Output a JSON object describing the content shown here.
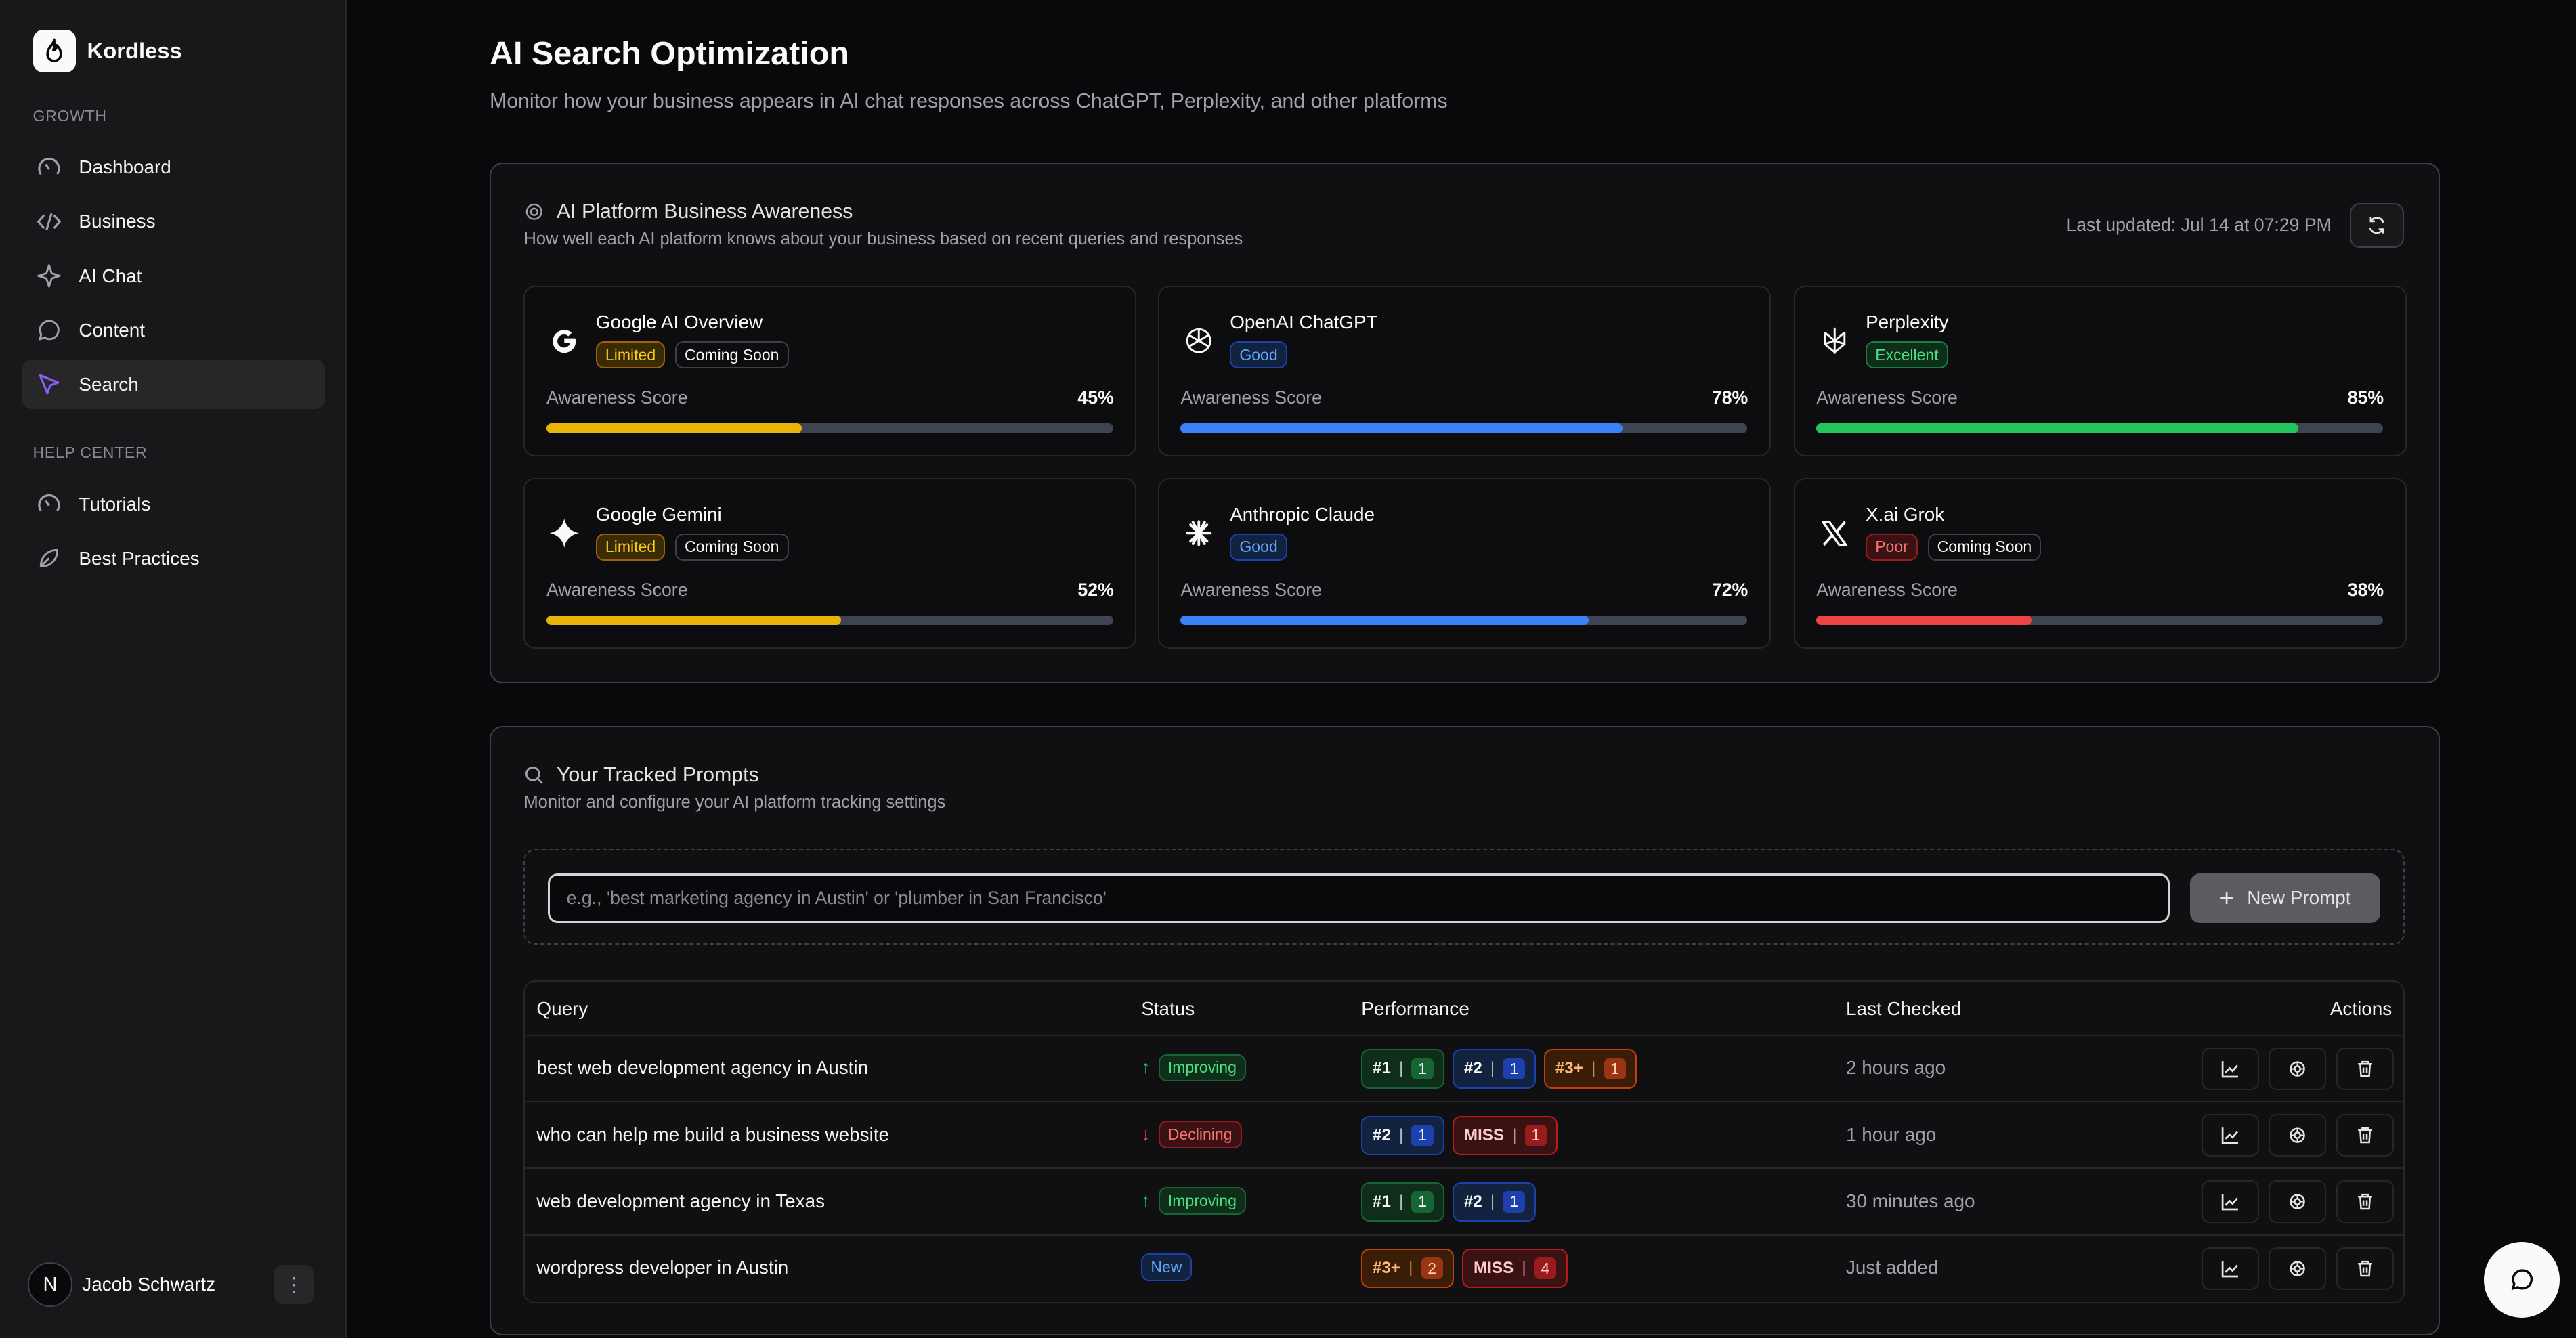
{
  "brand": {
    "name": "Kordless"
  },
  "sidebar": {
    "groups": [
      {
        "label": "GROWTH",
        "items": [
          {
            "label": "Dashboard",
            "icon": "gauge-icon"
          },
          {
            "label": "Business",
            "icon": "code-icon"
          },
          {
            "label": "AI Chat",
            "icon": "sparkle-icon"
          },
          {
            "label": "Content",
            "icon": "chat-bubble-icon"
          },
          {
            "label": "Search",
            "icon": "cursor-arrow-icon",
            "active": true
          }
        ]
      },
      {
        "label": "HELP CENTER",
        "items": [
          {
            "label": "Tutorials",
            "icon": "gauge-icon"
          },
          {
            "label": "Best Practices",
            "icon": "leaf-icon"
          }
        ]
      }
    ]
  },
  "user": {
    "initial": "N",
    "name": "Jacob Schwartz"
  },
  "page": {
    "title": "AI Search Optimization",
    "subtitle": "Monitor how your business appears in AI chat responses across ChatGPT, Perplexity, and other platforms"
  },
  "awareness": {
    "title": "AI Platform Business Awareness",
    "subtitle": "How well each AI platform knows about your business based on recent queries and responses",
    "last_updated": "Last updated: Jul 14 at 07:29 PM",
    "score_label": "Awareness Score",
    "platforms": [
      {
        "name": "Google AI Overview",
        "icon": "google-g-icon",
        "rating": "Limited",
        "soon": "Coming Soon",
        "score": "45%",
        "fill": 0.45,
        "color": "#eab308"
      },
      {
        "name": "OpenAI ChatGPT",
        "icon": "openai-icon",
        "rating": "Good",
        "soon": "",
        "score": "78%",
        "fill": 0.78,
        "color": "#3b82f6"
      },
      {
        "name": "Perplexity",
        "icon": "perplexity-icon",
        "rating": "Excellent",
        "soon": "",
        "score": "85%",
        "fill": 0.85,
        "color": "#22c55e"
      },
      {
        "name": "Google Gemini",
        "icon": "gemini-sparkle-icon",
        "rating": "Limited",
        "soon": "Coming Soon",
        "score": "52%",
        "fill": 0.52,
        "color": "#eab308"
      },
      {
        "name": "Anthropic Claude",
        "icon": "claude-asterisk-icon",
        "rating": "Good",
        "soon": "",
        "score": "72%",
        "fill": 0.72,
        "color": "#3b82f6"
      },
      {
        "name": "X.ai Grok",
        "icon": "x-logo-icon",
        "rating": "Poor",
        "soon": "Coming Soon",
        "score": "38%",
        "fill": 0.38,
        "color": "#ef4444"
      }
    ]
  },
  "prompts": {
    "title": "Your Tracked Prompts",
    "subtitle": "Monitor and configure your AI platform tracking settings",
    "input_placeholder": "e.g., 'best marketing agency in Austin' or 'plumber in San Francisco'",
    "new_button": "New Prompt",
    "columns": [
      "Query",
      "Status",
      "Performance",
      "Last Checked",
      "Actions"
    ],
    "rows": [
      {
        "query": "best web development agency in Austin",
        "status": "Improving",
        "trend": "up",
        "perf": [
          {
            "rank": "#1",
            "count": "1",
            "kind": "1"
          },
          {
            "rank": "#2",
            "count": "1",
            "kind": "2"
          },
          {
            "rank": "#3+",
            "count": "1",
            "kind": "3"
          }
        ],
        "last": "2 hours ago"
      },
      {
        "query": "who can help me build a business website",
        "status": "Declining",
        "trend": "down",
        "perf": [
          {
            "rank": "#2",
            "count": "1",
            "kind": "2"
          },
          {
            "rank": "MISS",
            "count": "1",
            "kind": "miss"
          }
        ],
        "last": "1 hour ago"
      },
      {
        "query": "web development agency in Texas",
        "status": "Improving",
        "trend": "up",
        "perf": [
          {
            "rank": "#1",
            "count": "1",
            "kind": "1"
          },
          {
            "rank": "#2",
            "count": "1",
            "kind": "2"
          }
        ],
        "last": "30 minutes ago"
      },
      {
        "query": "wordpress developer in Austin",
        "status": "New",
        "trend": "none",
        "perf": [
          {
            "rank": "#3+",
            "count": "2",
            "kind": "3"
          },
          {
            "rank": "MISS",
            "count": "4",
            "kind": "miss"
          }
        ],
        "last": "Just added"
      }
    ]
  }
}
